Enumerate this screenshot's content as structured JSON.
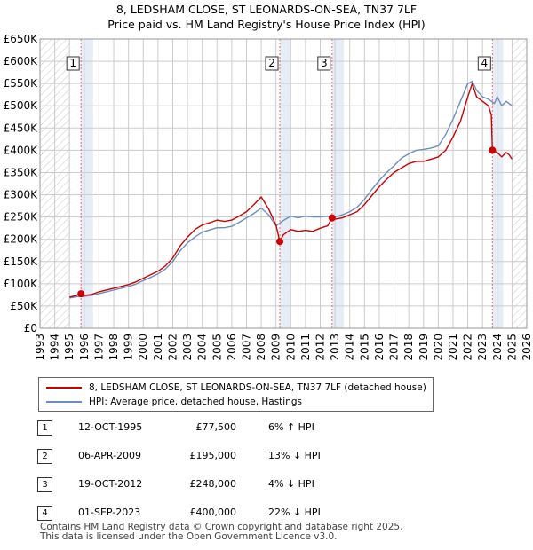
{
  "title_line1": "8, LEDSHAM CLOSE, ST LEONARDS-ON-SEA, TN37 7LF",
  "title_line2": "Price paid vs. HM Land Registry's House Price Index (HPI)",
  "colors": {
    "property": "#cc0000",
    "hpi": "#6c8ebf",
    "sale_band": "#e6edf7",
    "grid": "#cccccc",
    "hatch": "#d9d9d9",
    "vline": "#ee6666"
  },
  "legend": {
    "property": "8, LEDSHAM CLOSE, ST LEONARDS-ON-SEA, TN37 7LF (detached house)",
    "hpi": "HPI: Average price, detached house, Hastings"
  },
  "sales": [
    {
      "num": "1",
      "date": "12-OCT-1995",
      "price": "£77,500",
      "diff": "6% ↑ HPI",
      "x": 1995.78,
      "y": 77500
    },
    {
      "num": "2",
      "date": "06-APR-2009",
      "price": "£195,000",
      "diff": "13% ↓ HPI",
      "x": 2009.26,
      "y": 195000
    },
    {
      "num": "3",
      "date": "19-OCT-2012",
      "price": "£248,000",
      "diff": "4% ↓ HPI",
      "x": 2012.8,
      "y": 248000
    },
    {
      "num": "4",
      "date": "01-SEP-2023",
      "price": "£400,000",
      "diff": "22% ↓ HPI",
      "x": 2023.67,
      "y": 400000
    }
  ],
  "footer_line1": "Contains HM Land Registry data © Crown copyright and database right 2025.",
  "footer_line2": "This data is licensed under the Open Government Licence v3.0.",
  "chart_data": {
    "type": "line",
    "title": "8, LEDSHAM CLOSE, ST LEONARDS-ON-SEA, TN37 7LF — Price paid vs. HM Land Registry's House Price Index (HPI)",
    "xlabel": "",
    "ylabel": "",
    "xlim": [
      1993,
      2026
    ],
    "ylim": [
      0,
      650000
    ],
    "x_ticks": [
      1993,
      1994,
      1995,
      1996,
      1997,
      1998,
      1999,
      2000,
      2001,
      2002,
      2003,
      2004,
      2005,
      2006,
      2007,
      2008,
      2009,
      2010,
      2011,
      2012,
      2013,
      2014,
      2015,
      2016,
      2017,
      2018,
      2019,
      2020,
      2021,
      2022,
      2023,
      2024,
      2025,
      2026
    ],
    "y_ticks": [
      {
        "value": 0,
        "label": "£0"
      },
      {
        "value": 50000,
        "label": "£50K"
      },
      {
        "value": 100000,
        "label": "£100K"
      },
      {
        "value": 150000,
        "label": "£150K"
      },
      {
        "value": 200000,
        "label": "£200K"
      },
      {
        "value": 250000,
        "label": "£250K"
      },
      {
        "value": 300000,
        "label": "£300K"
      },
      {
        "value": 350000,
        "label": "£350K"
      },
      {
        "value": 400000,
        "label": "£400K"
      },
      {
        "value": 450000,
        "label": "£450K"
      },
      {
        "value": 500000,
        "label": "£500K"
      },
      {
        "value": 550000,
        "label": "£550K"
      },
      {
        "value": 600000,
        "label": "£600K"
      },
      {
        "value": 650000,
        "label": "£650K"
      }
    ],
    "grid": true,
    "legend_position": "bottom",
    "hatched_x_ranges": [
      [
        1993,
        1995.0
      ],
      [
        2025.0,
        2026
      ]
    ],
    "sale_bands": [
      [
        1995.78,
        1996.6
      ],
      [
        2009.26,
        2010.0
      ],
      [
        2012.8,
        2013.6
      ],
      [
        2023.67,
        2024.4
      ]
    ],
    "series": [
      {
        "name": "8, LEDSHAM CLOSE, ST LEONARDS-ON-SEA, TN37 7LF (detached house)",
        "x": [
          1995.0,
          1995.5,
          1995.78,
          1996.0,
          1996.5,
          1997.0,
          1997.5,
          1998.0,
          1998.5,
          1999.0,
          1999.5,
          2000.0,
          2000.5,
          2001.0,
          2001.5,
          2002.0,
          2002.5,
          2003.0,
          2003.5,
          2004.0,
          2004.5,
          2005.0,
          2005.5,
          2006.0,
          2006.5,
          2007.0,
          2007.5,
          2008.0,
          2008.5,
          2009.0,
          2009.26,
          2009.5,
          2010.0,
          2010.5,
          2011.0,
          2011.5,
          2012.0,
          2012.5,
          2012.8,
          2013.0,
          2013.5,
          2014.0,
          2014.5,
          2015.0,
          2015.5,
          2016.0,
          2016.5,
          2017.0,
          2017.5,
          2018.0,
          2018.5,
          2019.0,
          2019.5,
          2020.0,
          2020.5,
          2021.0,
          2021.5,
          2022.0,
          2022.3,
          2022.6,
          2023.0,
          2023.4,
          2023.6,
          2023.67,
          2024.0,
          2024.3,
          2024.6,
          2024.8,
          2025.0
        ],
        "values": [
          70000,
          74000,
          77500,
          74000,
          76000,
          82000,
          86000,
          90000,
          94000,
          98000,
          104000,
          112000,
          120000,
          128000,
          140000,
          158000,
          185000,
          205000,
          222000,
          232000,
          237000,
          243000,
          240000,
          243000,
          252000,
          262000,
          278000,
          295000,
          268000,
          232000,
          195000,
          210000,
          222000,
          218000,
          220000,
          218000,
          225000,
          230000,
          248000,
          245000,
          248000,
          255000,
          262000,
          278000,
          298000,
          318000,
          335000,
          350000,
          360000,
          370000,
          375000,
          375000,
          380000,
          385000,
          400000,
          430000,
          465000,
          520000,
          550000,
          520000,
          510000,
          500000,
          480000,
          400000,
          395000,
          385000,
          395000,
          390000,
          380000
        ]
      },
      {
        "name": "HPI: Average price, detached house, Hastings",
        "x": [
          1995.0,
          1995.5,
          1996.0,
          1996.5,
          1997.0,
          1997.5,
          1998.0,
          1998.5,
          1999.0,
          1999.5,
          2000.0,
          2000.5,
          2001.0,
          2001.5,
          2002.0,
          2002.5,
          2003.0,
          2003.5,
          2004.0,
          2004.5,
          2005.0,
          2005.5,
          2006.0,
          2006.5,
          2007.0,
          2007.5,
          2008.0,
          2008.5,
          2009.0,
          2009.5,
          2010.0,
          2010.5,
          2011.0,
          2011.5,
          2012.0,
          2012.5,
          2013.0,
          2013.5,
          2014.0,
          2014.5,
          2015.0,
          2015.5,
          2016.0,
          2016.5,
          2017.0,
          2017.5,
          2018.0,
          2018.5,
          2019.0,
          2019.5,
          2020.0,
          2020.5,
          2021.0,
          2021.5,
          2022.0,
          2022.3,
          2022.6,
          2023.0,
          2023.4,
          2023.8,
          2024.0,
          2024.3,
          2024.6,
          2024.8,
          2025.0
        ],
        "values": [
          68000,
          71000,
          72000,
          74000,
          78000,
          82000,
          86000,
          90000,
          94000,
          99000,
          107000,
          114000,
          122000,
          133000,
          150000,
          174000,
          192000,
          205000,
          216000,
          221000,
          226000,
          226000,
          229000,
          238000,
          248000,
          258000,
          270000,
          255000,
          230000,
          242000,
          252000,
          248000,
          252000,
          250000,
          250000,
          252000,
          250000,
          255000,
          262000,
          272000,
          290000,
          312000,
          332000,
          350000,
          365000,
          382000,
          392000,
          400000,
          402000,
          405000,
          410000,
          435000,
          470000,
          510000,
          550000,
          555000,
          535000,
          520000,
          515000,
          505000,
          520000,
          500000,
          510000,
          505000,
          500000
        ]
      }
    ]
  }
}
